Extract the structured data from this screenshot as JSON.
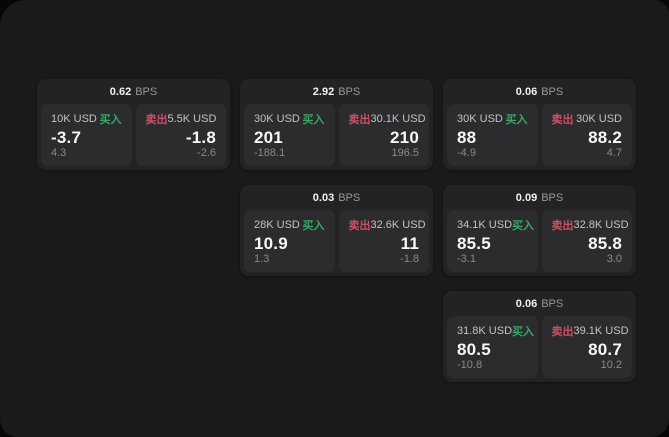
{
  "labels": {
    "bps_suffix": "BPS",
    "buy": "买入",
    "sell": "卖出"
  },
  "colors": {
    "buy_green": "#37a766",
    "sell_red": "#cc4f66",
    "panel_bg": "#1a1a1c",
    "card_bg": "#232325",
    "tile_bg": "#2c2c2e"
  },
  "cards": [
    {
      "bps": "0.62",
      "buy": {
        "amount": "10K USD",
        "value": "-3.7",
        "sub": "4.3"
      },
      "sell": {
        "amount": "5.5K USD",
        "value": "-1.8",
        "sub": "-2.6"
      }
    },
    {
      "bps": "2.92",
      "buy": {
        "amount": "30K USD",
        "value": "201",
        "sub": "-188.1"
      },
      "sell": {
        "amount": "30.1K USD",
        "value": "210",
        "sub": "196.5"
      }
    },
    {
      "bps": "0.06",
      "buy": {
        "amount": "30K USD",
        "value": "88",
        "sub": "-4.9"
      },
      "sell": {
        "amount": "30K USD",
        "value": "88.2",
        "sub": "4.7"
      }
    },
    {
      "bps": "0.03",
      "buy": {
        "amount": "28K USD",
        "value": "10.9",
        "sub": "1.3"
      },
      "sell": {
        "amount": "32.6K USD",
        "value": "11",
        "sub": "-1.8"
      }
    },
    {
      "bps": "0.09",
      "buy": {
        "amount": "34.1K USD",
        "value": "85.5",
        "sub": "-3.1"
      },
      "sell": {
        "amount": "32.8K USD",
        "value": "85.8",
        "sub": "3.0"
      }
    },
    {
      "bps": "0.06",
      "buy": {
        "amount": "31.8K USD",
        "value": "80.5",
        "sub": "-10.8"
      },
      "sell": {
        "amount": "39.1K USD",
        "value": "80.7",
        "sub": "10.2"
      }
    }
  ]
}
